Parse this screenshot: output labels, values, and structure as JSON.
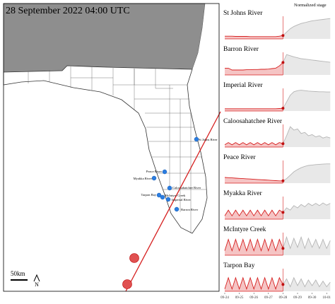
{
  "map": {
    "title": "28 September 2022 04:00 UTC",
    "stations": [
      {
        "name": "St Johns River"
      },
      {
        "name": "Peace River"
      },
      {
        "name": "Myakka River"
      },
      {
        "name": "Caloosahatchee River"
      },
      {
        "name": "Tarpon Bay"
      },
      {
        "name": "McIntyre Creek"
      },
      {
        "name": "Imperial River"
      },
      {
        "name": "Barron River"
      }
    ],
    "scale_label": "50km",
    "north_label": "N"
  },
  "panels": {
    "label": "Normalized stage",
    "dates": [
      "09-24",
      "09-25",
      "09-26",
      "09-27",
      "09-28",
      "09-29",
      "09-30",
      "10-01"
    ],
    "items": [
      {
        "name": "St Johns River",
        "observed": [
          0.12,
          0.12,
          0.12,
          0.11,
          0.11,
          0.11,
          0.11,
          0.1,
          0.1,
          0.1,
          0.1,
          0.1,
          0.1,
          0.1,
          0.1,
          0.12,
          0.15
        ],
        "forecast": [
          0.15,
          0.3,
          0.45,
          0.55,
          0.62,
          0.68,
          0.72,
          0.76,
          0.8,
          0.82,
          0.84,
          0.86,
          0.88,
          0.9
        ]
      },
      {
        "name": "Barron River",
        "observed": [
          0.3,
          0.3,
          0.22,
          0.22,
          0.22,
          0.22,
          0.23,
          0.23,
          0.24,
          0.24,
          0.25,
          0.25,
          0.26,
          0.28,
          0.3,
          0.4,
          0.55
        ],
        "forecast": [
          0.55,
          0.9,
          0.85,
          0.8,
          0.76,
          0.72,
          0.7,
          0.68,
          0.66,
          0.64,
          0.62,
          0.6,
          0.58,
          0.56
        ]
      },
      {
        "name": "Imperial River",
        "observed": [
          0.1,
          0.1,
          0.1,
          0.1,
          0.1,
          0.1,
          0.1,
          0.1,
          0.1,
          0.1,
          0.1,
          0.1,
          0.1,
          0.1,
          0.1,
          0.11,
          0.12
        ],
        "forecast": [
          0.12,
          0.4,
          0.7,
          0.85,
          0.9,
          0.92,
          0.9,
          0.88,
          0.87,
          0.86,
          0.85,
          0.85,
          0.84,
          0.84
        ]
      },
      {
        "name": "Caloosahatchee River",
        "observed": [
          0.1,
          0.2,
          0.1,
          0.2,
          0.1,
          0.2,
          0.1,
          0.2,
          0.1,
          0.2,
          0.1,
          0.2,
          0.1,
          0.2,
          0.1,
          0.2,
          0.15
        ],
        "forecast": [
          0.15,
          0.5,
          0.9,
          0.75,
          0.8,
          0.6,
          0.65,
          0.5,
          0.55,
          0.45,
          0.5,
          0.4,
          0.45,
          0.4
        ]
      },
      {
        "name": "Peace River",
        "observed": [
          0.25,
          0.24,
          0.23,
          0.22,
          0.21,
          0.2,
          0.19,
          0.18,
          0.17,
          0.16,
          0.15,
          0.14,
          0.13,
          0.12,
          0.11,
          0.1,
          0.1
        ],
        "forecast": [
          0.1,
          0.2,
          0.35,
          0.5,
          0.6,
          0.68,
          0.74,
          0.78,
          0.8,
          0.82,
          0.83,
          0.84,
          0.85,
          0.85
        ]
      },
      {
        "name": "Myakka River",
        "observed": [
          0.15,
          0.4,
          0.15,
          0.4,
          0.15,
          0.4,
          0.15,
          0.4,
          0.15,
          0.4,
          0.15,
          0.4,
          0.15,
          0.4,
          0.15,
          0.4,
          0.3
        ],
        "forecast": [
          0.3,
          0.5,
          0.4,
          0.6,
          0.5,
          0.65,
          0.55,
          0.7,
          0.6,
          0.7,
          0.6,
          0.72,
          0.62,
          0.7
        ]
      },
      {
        "name": "McIntyre Creek",
        "observed": [
          0.2,
          0.7,
          0.2,
          0.7,
          0.2,
          0.7,
          0.2,
          0.7,
          0.2,
          0.7,
          0.2,
          0.7,
          0.2,
          0.7,
          0.2,
          0.7,
          0.3
        ],
        "forecast": [
          0.3,
          0.8,
          0.3,
          0.75,
          0.35,
          0.8,
          0.3,
          0.75,
          0.35,
          0.7,
          0.3,
          0.7,
          0.3,
          0.65
        ]
      },
      {
        "name": "Tarpon Bay",
        "observed": [
          0.1,
          0.6,
          0.1,
          0.6,
          0.1,
          0.6,
          0.1,
          0.6,
          0.1,
          0.6,
          0.1,
          0.6,
          0.1,
          0.6,
          0.1,
          0.6,
          0.3
        ],
        "forecast": [
          0.3,
          0.55,
          0.2,
          0.6,
          0.25,
          0.55,
          0.2,
          0.5,
          0.25,
          0.5,
          0.2,
          0.45,
          0.2,
          0.4
        ]
      }
    ]
  }
}
